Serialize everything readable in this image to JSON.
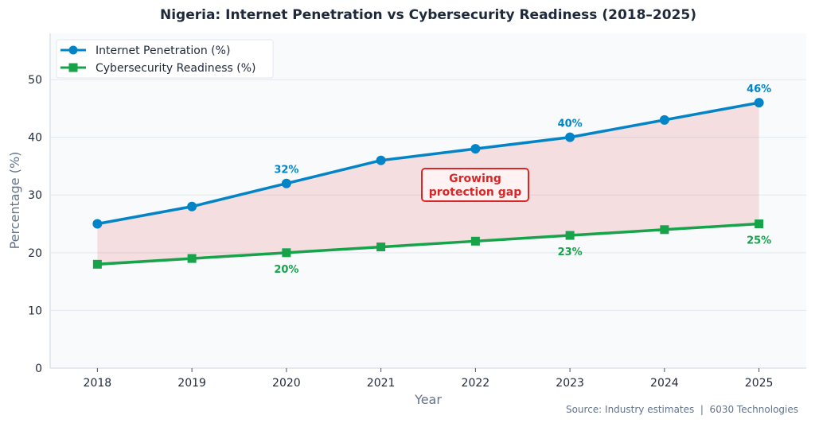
{
  "chart_data": {
    "type": "line",
    "title": "Nigeria: Internet Penetration vs Cybersecurity Readiness (2018–2025)",
    "xlabel": "Year",
    "ylabel": "Percentage (%)",
    "x": [
      2018,
      2019,
      2020,
      2021,
      2022,
      2023,
      2024,
      2025
    ],
    "xlim": [
      2017.5,
      2025.5
    ],
    "ylim": [
      0,
      58
    ],
    "yticks": [
      0,
      10,
      20,
      30,
      40,
      50
    ],
    "grid": "horizontal",
    "legend_placement": "top-left",
    "series": [
      {
        "name": "Internet Penetration (%)",
        "values": [
          25,
          28,
          32,
          36,
          38,
          40,
          43,
          46
        ],
        "color": "#0284c7",
        "marker": "circle",
        "labels": [
          {
            "x": 2020,
            "text": "32%"
          },
          {
            "x": 2023,
            "text": "40%"
          },
          {
            "x": 2025,
            "text": "46%"
          }
        ]
      },
      {
        "name": "Cybersecurity Readiness (%)",
        "values": [
          18,
          19,
          20,
          21,
          22,
          23,
          24,
          25
        ],
        "color": "#16a34a",
        "marker": "square",
        "labels": [
          {
            "x": 2020,
            "text": "20%"
          },
          {
            "x": 2023,
            "text": "23%"
          },
          {
            "x": 2025,
            "text": "25%"
          }
        ]
      }
    ],
    "gap_fill_color": "#dc2626",
    "annotation": {
      "lines": [
        "Growing",
        "protection gap"
      ],
      "x": 2022,
      "y": 31,
      "color": "#dc2626"
    },
    "source": "Source: Industry estimates  |  6030 Technologies"
  }
}
